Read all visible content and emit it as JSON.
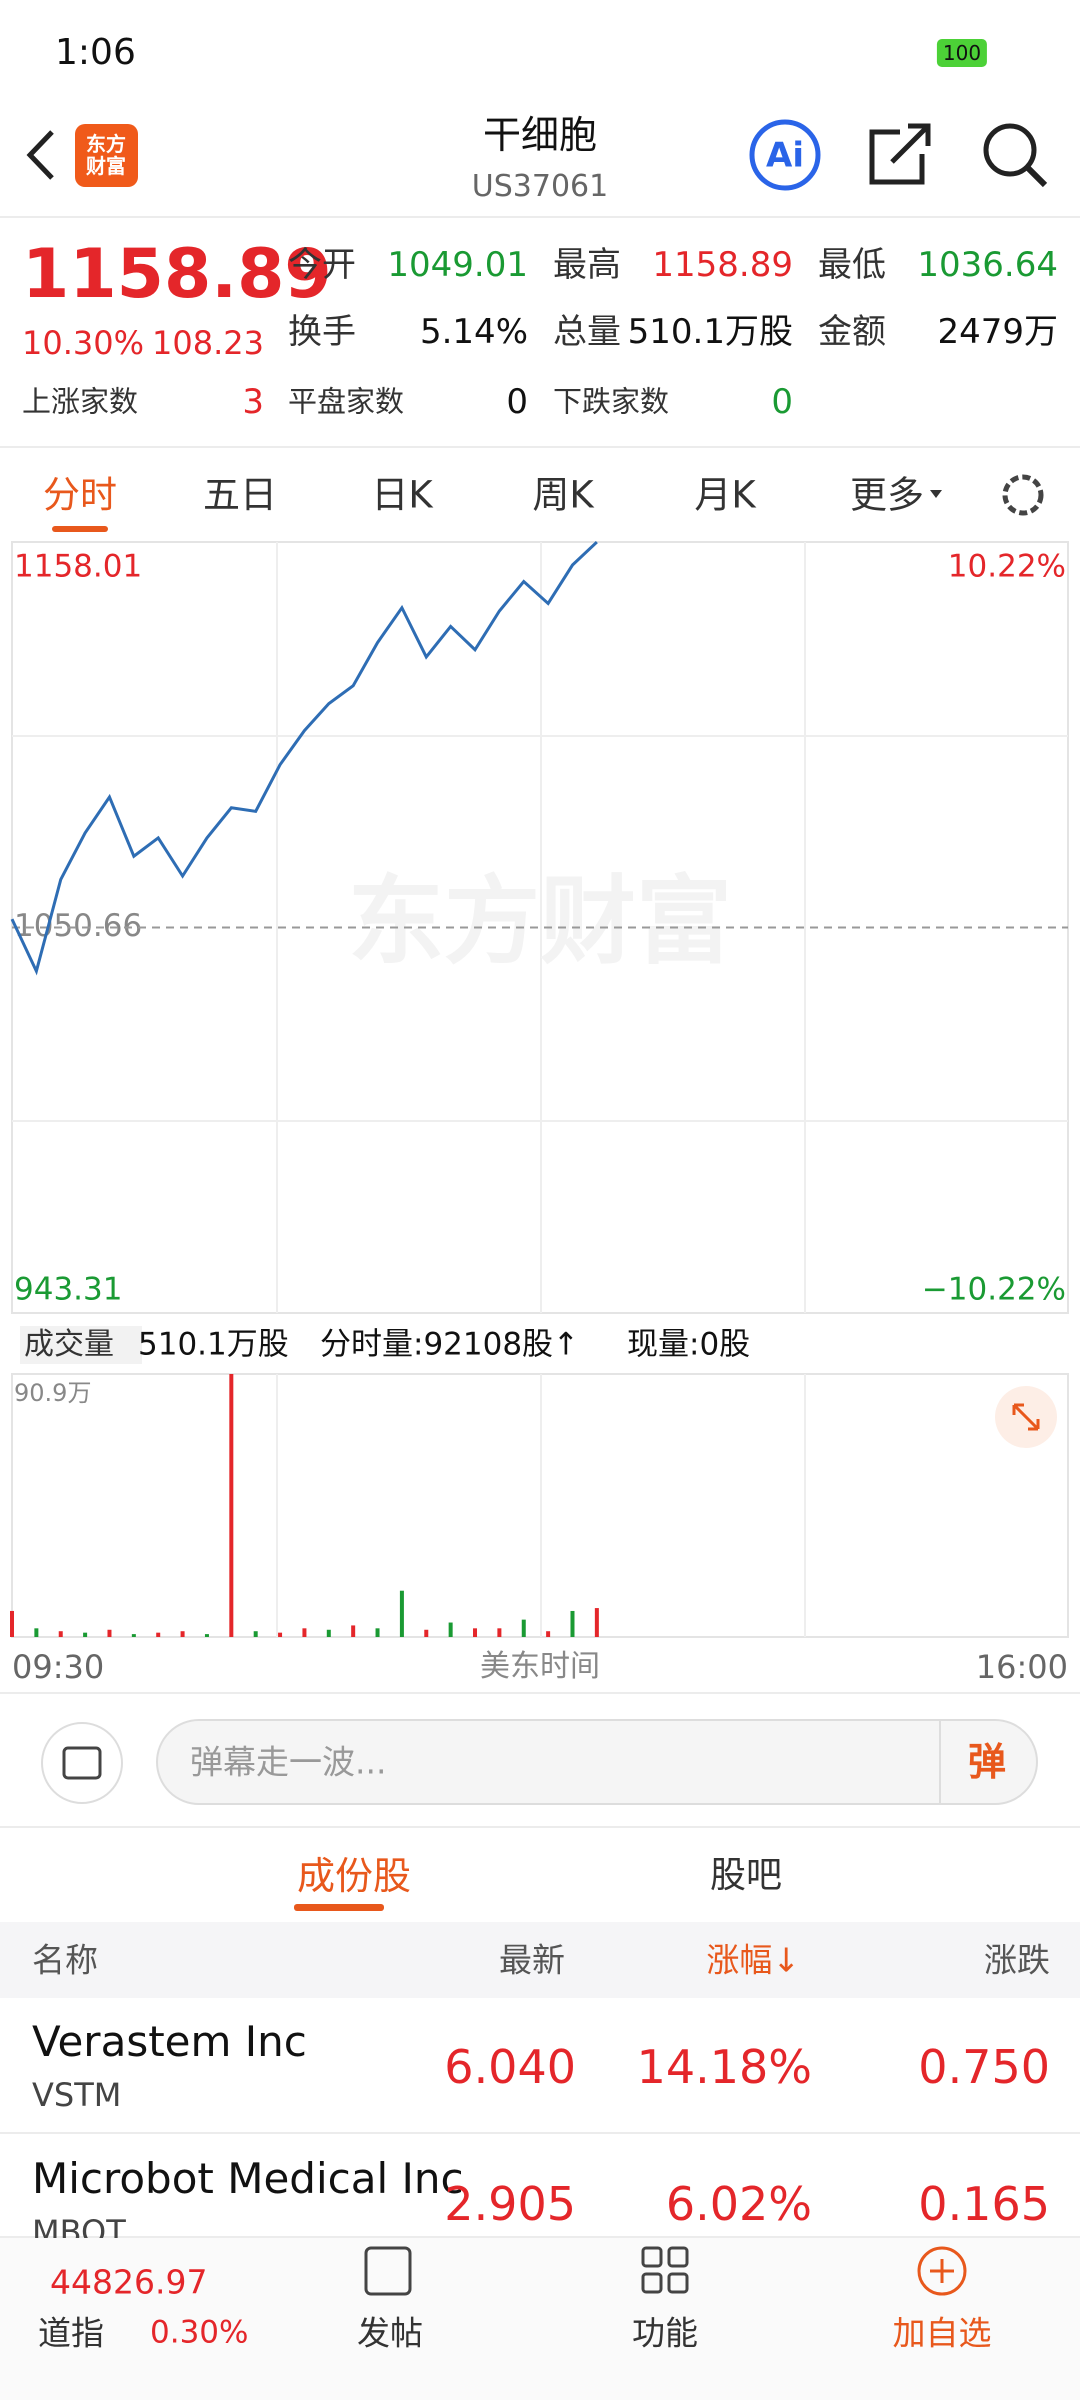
{
  "status_bar": {
    "time": "1:06",
    "battery": "100"
  },
  "header": {
    "logo": "东方财富",
    "title": "干细胞",
    "code": "US37061"
  },
  "quote": {
    "price": "1158.89",
    "change_pct": "10.30%",
    "change": "108.23",
    "stats": [
      {
        "label": "今开",
        "value": "1049.01"
      },
      {
        "label": "最高",
        "value": "1158.89"
      },
      {
        "label": "最低",
        "value": "1036.64"
      },
      {
        "label": "换手",
        "value": "5.14%"
      },
      {
        "label": "总量",
        "value": "510.1万股"
      },
      {
        "label": "金额",
        "value": "2479万"
      }
    ],
    "breadth": [
      {
        "label": "上涨家数",
        "value": "3"
      },
      {
        "label": "平盘家数",
        "value": "0"
      },
      {
        "label": "下跌家数",
        "value": "0"
      }
    ]
  },
  "tabs": [
    "分时",
    "五日",
    "日K",
    "周K",
    "月K",
    "更多"
  ],
  "intraday": {
    "type": "line",
    "color": "#2e6db4",
    "watermark": "东方财富",
    "values": [
      1053,
      1038.5,
      1064,
      1077,
      1087,
      1070.5,
      1075.6,
      1065,
      1075.6,
      1084,
      1083,
      1096,
      1105.5,
      1113,
      1118,
      1130,
      1139.7,
      1126,
      1134.5,
      1128,
      1138.8,
      1147,
      1140.9,
      1151.6,
      1158
    ],
    "ylim": [
      943.31,
      1158.01
    ],
    "yticks": [
      943.31,
      1050.66,
      1158.01
    ],
    "y2lim": [
      -10.22,
      10.22
    ],
    "y2ticks": [
      {
        "value": -10.22,
        "label": "−10.22%"
      },
      {
        "value": 10.22,
        "label": "10.22%"
      }
    ],
    "x_start": "09:30",
    "x_end": "16:00",
    "x_label": "美东时间"
  },
  "volume_info": {
    "selector": "成交量",
    "total": "510.1万股",
    "minute": "分时量:92108股↑",
    "current": "现量:0股"
  },
  "volume": {
    "type": "bar",
    "values": [
      9,
      3,
      2,
      1.5,
      2.5,
      1,
      1.5,
      2,
      1,
      90.9,
      2,
      1.5,
      3,
      2.5,
      4,
      3,
      16,
      2.5,
      5,
      3,
      3,
      6,
      2,
      9,
      10
    ],
    "colors": [
      "#e4262a",
      "#1a9a33",
      "#e4262a",
      "#1a9a33",
      "#e4262a",
      "#1a9a33",
      "#e4262a",
      "#e4262a",
      "#1a9a33",
      "#e4262a",
      "#1a9a33",
      "#e4262a",
      "#e4262a",
      "#1a9a33",
      "#e4262a",
      "#1a9a33",
      "#1a9a33",
      "#e4262a",
      "#1a9a33",
      "#e4262a",
      "#e4262a",
      "#1a9a33",
      "#e4262a",
      "#1a9a33",
      "#e4262a"
    ],
    "ylim": [
      0,
      90.9
    ],
    "yticks": [
      {
        "value": 90.9,
        "label": "90.9万"
      }
    ]
  },
  "comment": {
    "placeholder": "弹幕走一波...",
    "button": "弹"
  },
  "section_tabs": [
    "成份股",
    "股吧"
  ],
  "table": {
    "header": [
      "名称",
      "最新",
      "涨幅↓",
      "涨跌"
    ],
    "rows": [
      {
        "name": "Verastem Inc",
        "code": "VSTM",
        "price": "6.040",
        "pct": "14.18%",
        "change": "0.750"
      },
      {
        "name": "Microbot Medical Inc",
        "code": "MBOT",
        "price": "2.905",
        "pct": "6.02%",
        "change": "0.165"
      }
    ]
  },
  "bottom_bar": {
    "index_value": "44826.97",
    "index_name": "道指",
    "index_pct": "0.30%",
    "buttons": [
      "发帖",
      "功能",
      "加自选"
    ]
  }
}
